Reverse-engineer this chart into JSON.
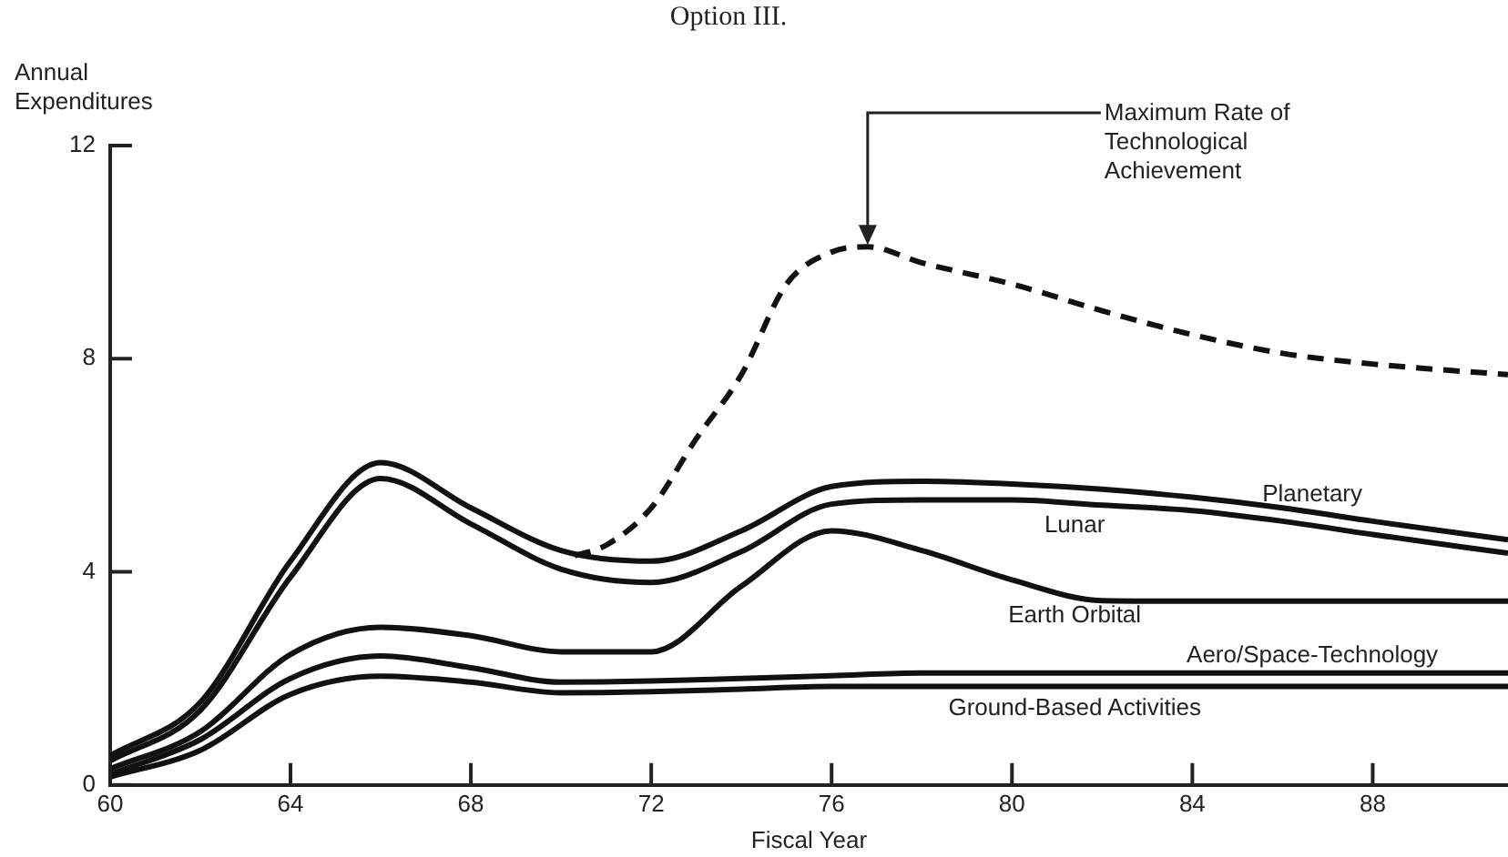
{
  "chart_data": {
    "type": "line",
    "title": "Option III.",
    "ylabel": "Annual Expenditures",
    "xlabel": "Fiscal Year",
    "x": [
      60,
      62,
      64,
      66,
      68,
      70,
      72,
      74,
      76,
      78,
      80,
      82,
      84,
      86,
      88,
      91
    ],
    "series": [
      {
        "name": "Planetary",
        "color": "#111111",
        "values": [
          0.55,
          1.55,
          4.2,
          6.05,
          5.2,
          4.4,
          4.2,
          4.77,
          5.6,
          5.7,
          5.65,
          5.55,
          5.4,
          5.2,
          4.95,
          4.6
        ]
      },
      {
        "name": "Lunar",
        "color": "#111111",
        "values": [
          0.45,
          1.4,
          3.9,
          5.75,
          4.9,
          4.05,
          3.8,
          4.38,
          5.27,
          5.35,
          5.35,
          5.25,
          5.15,
          4.95,
          4.7,
          4.35
        ]
      },
      {
        "name": "Earth Orbital",
        "color": "#111111",
        "values": [
          0.3,
          1.0,
          2.45,
          2.96,
          2.8,
          2.5,
          2.5,
          3.73,
          4.77,
          4.4,
          3.85,
          3.46,
          3.45,
          3.45,
          3.45,
          3.45
        ]
      },
      {
        "name": "Aero/Space-Technology",
        "color": "#111111",
        "values": [
          0.2,
          0.85,
          2.0,
          2.42,
          2.2,
          1.93,
          1.95,
          2.0,
          2.05,
          2.1,
          2.1,
          2.1,
          2.1,
          2.1,
          2.1,
          2.1
        ]
      },
      {
        "name": "Ground-Based Activities",
        "color": "#111111",
        "values": [
          0.15,
          0.65,
          1.7,
          2.04,
          1.93,
          1.73,
          1.75,
          1.8,
          1.85,
          1.85,
          1.85,
          1.85,
          1.85,
          1.85,
          1.85,
          1.85
        ]
      },
      {
        "color": "#111111",
        "line_style": "dashed",
        "x": [
          70.3,
          71,
          72,
          73,
          74,
          75,
          76,
          76.8,
          78,
          80,
          82,
          84,
          86,
          88,
          91
        ],
        "values": [
          4.3,
          4.5,
          5.2,
          6.5,
          7.7,
          9.4,
          10.0,
          10.1,
          9.8,
          9.4,
          8.9,
          8.45,
          8.1,
          7.9,
          7.7
        ]
      }
    ],
    "xlim": [
      60,
      91
    ],
    "xticks": [
      60,
      64,
      68,
      72,
      76,
      80,
      84,
      88
    ],
    "ylim": [
      0,
      12
    ],
    "yticks": [
      0,
      4,
      8,
      12
    ],
    "grid": false,
    "legend": false,
    "marker": "none",
    "annotations": [
      {
        "text": "Maximum Rate of Technological Achievement",
        "x": 76.8,
        "y": 10.1
      }
    ]
  }
}
